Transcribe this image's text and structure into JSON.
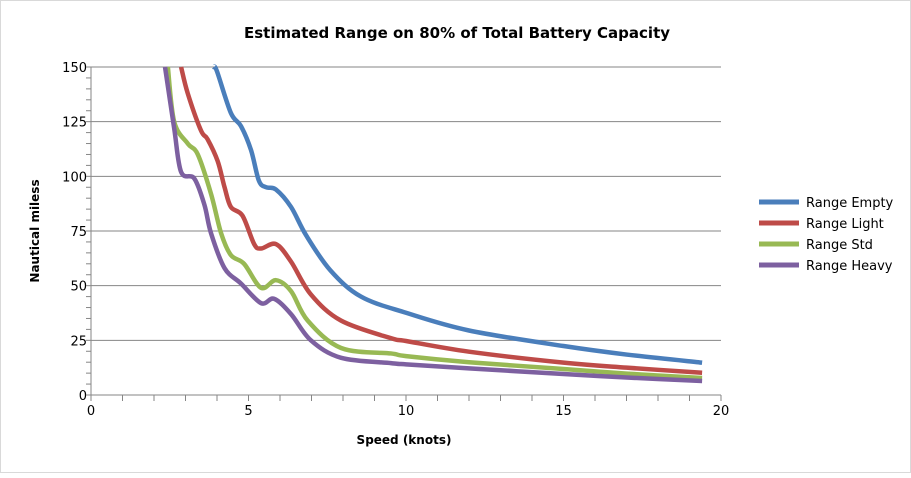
{
  "chart_data": {
    "type": "line",
    "title": "Estimated Range on 80% of Total Battery Capacity",
    "xlabel": "Speed (knots)",
    "ylabel": "Nautical miless",
    "xlim": [
      0,
      20
    ],
    "ylim": [
      0,
      150
    ],
    "xticks": [
      0,
      5,
      10,
      15,
      20
    ],
    "yticks": [
      0,
      25,
      50,
      75,
      100,
      125,
      150
    ],
    "grid": "horizontal",
    "legend_position": "right",
    "series": [
      {
        "name": "Range Empty",
        "color": "#4a7ebb",
        "x": [
          3.9,
          4.0,
          4.44,
          4.76,
          5.08,
          5.33,
          5.56,
          5.87,
          6.35,
          6.83,
          7.6,
          8.57,
          10,
          12,
          15,
          17,
          19.4
        ],
        "y": [
          150,
          148,
          129,
          123,
          112,
          98,
          95,
          94,
          86,
          73,
          57,
          45,
          37.6,
          29.5,
          22.4,
          18.5,
          14.8
        ]
      },
      {
        "name": "Range Light",
        "color": "#be4b48",
        "x": [
          2.86,
          3.07,
          3.49,
          3.7,
          4.02,
          4.24,
          4.44,
          4.81,
          5.18,
          5.4,
          5.87,
          6.35,
          6.98,
          7.94,
          9.52,
          10,
          12,
          15,
          17,
          19.4
        ],
        "y": [
          150,
          138,
          121,
          117,
          107,
          95,
          86,
          82,
          69,
          67,
          69,
          61,
          46,
          34,
          26,
          24.7,
          19.8,
          14.8,
          12.5,
          10.2
        ]
      },
      {
        "name": "Range Std",
        "color": "#98b954",
        "x": [
          2.44,
          2.64,
          3.07,
          3.39,
          3.81,
          4.13,
          4.44,
          4.86,
          5.4,
          5.87,
          6.35,
          6.88,
          7.94,
          9.52,
          10,
          12,
          15,
          17,
          19.4
        ],
        "y": [
          150,
          125,
          115,
          110,
          92,
          74,
          64,
          60,
          49,
          52.5,
          47.5,
          34,
          21.5,
          19,
          17.8,
          15,
          11.9,
          9.8,
          7.8
        ]
      },
      {
        "name": "Range Heavy",
        "color": "#7d60a0",
        "x": [
          2.35,
          2.64,
          2.86,
          3.28,
          3.6,
          3.81,
          4.24,
          4.76,
          5.4,
          5.81,
          6.35,
          6.98,
          7.94,
          9.52,
          10,
          12,
          15,
          17,
          19.4
        ],
        "y": [
          150,
          122,
          102,
          99,
          87,
          74,
          58,
          51,
          42,
          44,
          37,
          25,
          17,
          14.6,
          14.0,
          12.2,
          9.6,
          8.0,
          6.4
        ]
      }
    ]
  }
}
